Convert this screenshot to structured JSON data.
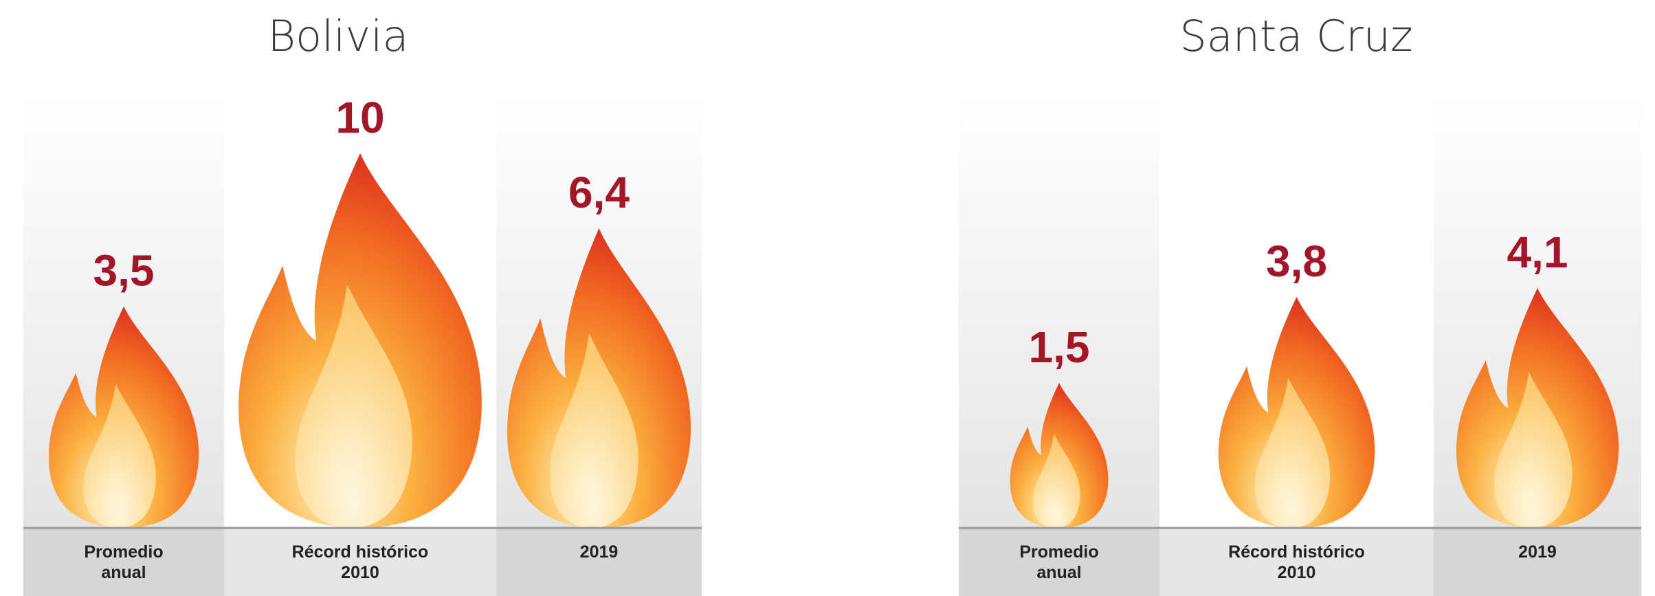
{
  "chart_data": [
    {
      "type": "pictogram",
      "title": "Bolivia",
      "categories": [
        "Promedio anual",
        "Récord histórico 2010",
        "2019"
      ],
      "values": [
        3.5,
        10,
        6.4
      ],
      "value_labels": [
        "3,5",
        "10",
        "6,4"
      ]
    },
    {
      "type": "pictogram",
      "title": "Santa Cruz",
      "categories": [
        "Promedio anual",
        "Récord histórico 2010",
        "2019"
      ],
      "values": [
        1.5,
        3.8,
        4.1
      ],
      "value_labels": [
        "1,5",
        "3,8",
        "4,1"
      ]
    }
  ]
}
